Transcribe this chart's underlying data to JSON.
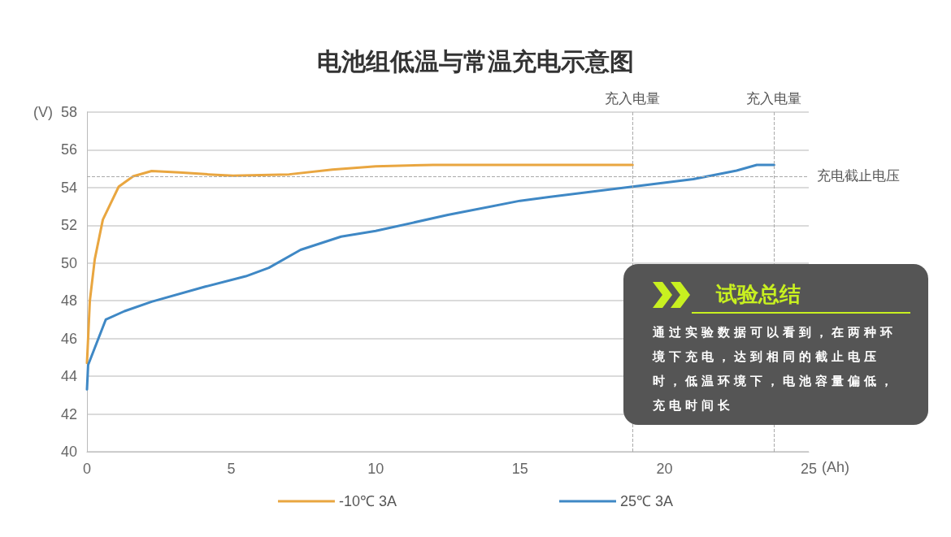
{
  "chart_data": {
    "type": "line",
    "title": "电池组低温与常温充电示意图",
    "xlabel": "(Ah)",
    "ylabel": "(V)",
    "xlim": [
      0,
      25
    ],
    "xticks": [
      0,
      5,
      10,
      15,
      20,
      25
    ],
    "ylim": [
      40,
      58
    ],
    "yticks": [
      40,
      42,
      44,
      46,
      48,
      50,
      52,
      54,
      56,
      58
    ],
    "grid": "y",
    "legend": "bottom",
    "series": [
      {
        "name": "-10℃ 3A",
        "color": "#e9a640",
        "x": [
          0,
          0.1,
          0.27,
          0.55,
          1.1,
          1.6,
          2.24,
          3.2,
          4.2,
          5.06,
          7,
          8.5,
          10,
          12,
          15,
          18.9
        ],
        "values": [
          44.7,
          48,
          50.2,
          52.3,
          54.05,
          54.6,
          54.88,
          54.8,
          54.7,
          54.63,
          54.7,
          54.95,
          55.13,
          55.2,
          55.2,
          55.2
        ]
      },
      {
        "name": "25℃ 3A",
        "color": "#3f88c5",
        "x": [
          0,
          0.04,
          0.65,
          1.3,
          2.24,
          4.1,
          5.5,
          6.3,
          7.4,
          8.8,
          10,
          12.5,
          15,
          16,
          18.9,
          21,
          22.5,
          23.2,
          23.8
        ],
        "values": [
          43.3,
          44.6,
          47,
          47.45,
          47.95,
          48.75,
          49.3,
          49.75,
          50.7,
          51.4,
          51.7,
          52.55,
          53.3,
          53.5,
          54.05,
          54.45,
          54.9,
          55.2,
          55.2
        ]
      }
    ],
    "ref_lines": [
      {
        "axis": "x",
        "value": 18.9,
        "label": "充入电量"
      },
      {
        "axis": "x",
        "value": 23.8,
        "label": "充入电量"
      },
      {
        "axis": "y",
        "value": 54.6,
        "label": "充电截止电压"
      }
    ],
    "annotations": [
      "试验总结",
      "通过实验数据可以看到，在两种环境下充电，达到相同的截止电压时，低温环境下，电池容量偏低，充电时间长"
    ]
  }
}
